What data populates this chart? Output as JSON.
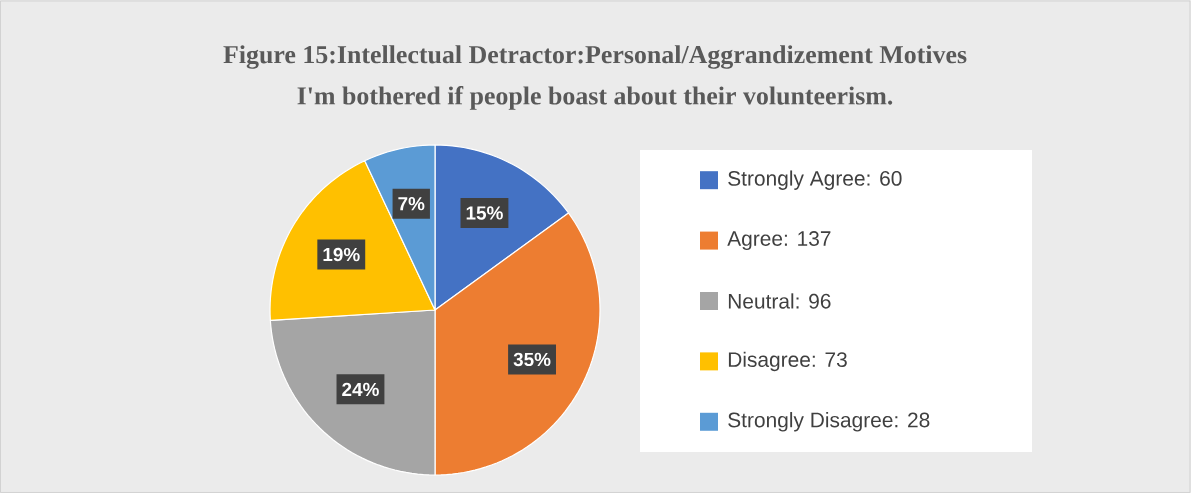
{
  "chart_data": {
    "type": "pie",
    "title": "Figure 15:Intellectual Detractor:Personal/Aggrandizement Motives",
    "subtitle": "I'm bothered if people boast about their volunteerism.",
    "categories": [
      "Strongly Agree: 60",
      "Agree: 137",
      "Neutral: 96",
      "Disagree: 73",
      "Strongly Disagree: 28"
    ],
    "values": [
      15,
      35,
      24,
      19,
      7
    ],
    "value_labels": [
      "15%",
      "35%",
      "24%",
      "19%",
      "7%"
    ],
    "colors": [
      "#4472c4",
      "#ed7d31",
      "#a5a5a5",
      "#ffc000",
      "#5b9bd5"
    ],
    "legend": "right"
  }
}
